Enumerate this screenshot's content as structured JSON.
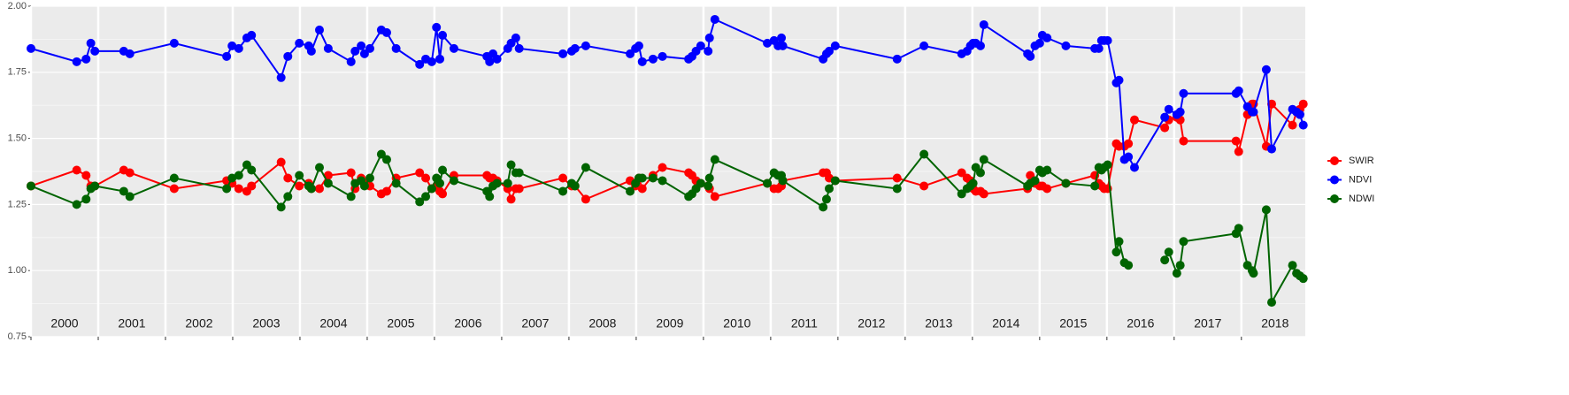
{
  "chart_data": {
    "type": "line",
    "x": [
      2000.0,
      2000.68,
      2000.82,
      2000.89,
      2000.95,
      2001.38,
      2001.47,
      2002.13,
      2002.91,
      2002.99,
      2003.09,
      2003.21,
      2003.28,
      2003.72,
      2003.82,
      2003.99,
      2004.13,
      2004.17,
      2004.29,
      2004.42,
      2004.76,
      2004.82,
      2004.91,
      2004.96,
      2005.04,
      2005.21,
      2005.29,
      2005.43,
      2005.78,
      2005.87,
      2005.96,
      2006.03,
      2006.08,
      2006.12,
      2006.29,
      2006.78,
      2006.82,
      2006.87,
      2006.93,
      2007.09,
      2007.14,
      2007.21,
      2007.26,
      2007.91,
      2008.04,
      2008.09,
      2008.25,
      2008.91,
      2008.99,
      2009.04,
      2009.09,
      2009.25,
      2009.39,
      2009.78,
      2009.83,
      2009.89,
      2009.96,
      2010.07,
      2010.09,
      2010.17,
      2010.95,
      2011.05,
      2011.11,
      2011.16,
      2011.18,
      2011.78,
      2011.83,
      2011.87,
      2011.96,
      2012.88,
      2013.28,
      2013.84,
      2013.92,
      2013.97,
      2014.01,
      2014.05,
      2014.12,
      2014.17,
      2014.82,
      2014.86,
      2014.93,
      2015.0,
      2015.04,
      2015.11,
      2015.39,
      2015.82,
      2015.88,
      2015.92,
      2015.96,
      2016.01,
      2016.14,
      2016.18,
      2016.26,
      2016.32,
      2016.41,
      2016.86,
      2016.92,
      2017.04,
      2017.09,
      2017.14,
      2017.92,
      2017.96,
      2018.09,
      2018.16,
      2018.18,
      2018.37,
      2018.45,
      2018.76,
      2018.82,
      2018.87,
      2018.92
    ],
    "series": [
      {
        "name": "SWIR",
        "color": "#ff0000",
        "values": [
          1.32,
          1.38,
          1.36,
          1.32,
          1.32,
          1.38,
          1.37,
          1.31,
          1.34,
          1.33,
          1.31,
          1.3,
          1.32,
          1.41,
          1.35,
          1.32,
          1.33,
          1.31,
          1.31,
          1.36,
          1.37,
          1.31,
          1.35,
          1.33,
          1.32,
          1.29,
          1.3,
          1.35,
          1.37,
          1.35,
          1.31,
          1.32,
          1.3,
          1.29,
          1.36,
          1.36,
          1.35,
          1.35,
          1.34,
          1.31,
          1.27,
          1.31,
          1.31,
          1.35,
          1.32,
          1.32,
          1.27,
          1.34,
          1.32,
          1.35,
          1.31,
          1.36,
          1.39,
          1.37,
          1.36,
          1.34,
          1.33,
          1.32,
          1.31,
          1.28,
          1.33,
          1.31,
          1.31,
          1.32,
          1.34,
          1.37,
          1.37,
          1.35,
          1.34,
          1.35,
          1.32,
          1.37,
          1.35,
          1.34,
          1.31,
          1.3,
          1.3,
          1.29,
          1.31,
          1.36,
          1.33,
          1.32,
          1.32,
          1.31,
          1.33,
          1.36,
          1.33,
          1.32,
          1.31,
          1.31,
          1.48,
          1.47,
          1.47,
          1.48,
          1.57,
          1.54,
          1.57,
          1.58,
          1.57,
          1.49,
          1.49,
          1.45,
          1.59,
          1.63,
          1.63,
          1.47,
          1.63,
          1.55,
          1.6,
          1.61,
          1.63
        ]
      },
      {
        "name": "NDVI",
        "color": "#0000ff",
        "values": [
          1.84,
          1.79,
          1.8,
          1.86,
          1.83,
          1.83,
          1.82,
          1.86,
          1.81,
          1.85,
          1.84,
          1.88,
          1.89,
          1.73,
          1.81,
          1.86,
          1.85,
          1.83,
          1.91,
          1.84,
          1.79,
          1.83,
          1.85,
          1.82,
          1.84,
          1.91,
          1.9,
          1.84,
          1.78,
          1.8,
          1.79,
          1.92,
          1.8,
          1.89,
          1.84,
          1.81,
          1.79,
          1.82,
          1.8,
          1.84,
          1.86,
          1.88,
          1.84,
          1.82,
          1.83,
          1.84,
          1.85,
          1.82,
          1.84,
          1.85,
          1.79,
          1.8,
          1.81,
          1.8,
          1.81,
          1.83,
          1.85,
          1.83,
          1.88,
          1.95,
          1.86,
          1.87,
          1.85,
          1.88,
          1.85,
          1.8,
          1.82,
          1.83,
          1.85,
          1.8,
          1.85,
          1.82,
          1.83,
          1.85,
          1.86,
          1.86,
          1.85,
          1.93,
          1.82,
          1.81,
          1.85,
          1.86,
          1.89,
          1.88,
          1.85,
          1.84,
          1.84,
          1.87,
          1.87,
          1.87,
          1.71,
          1.72,
          1.42,
          1.43,
          1.39,
          1.58,
          1.61,
          1.59,
          1.6,
          1.67,
          1.67,
          1.68,
          1.62,
          1.6,
          1.6,
          1.76,
          1.46,
          1.61,
          1.6,
          1.59,
          1.55
        ]
      },
      {
        "name": "NDWI",
        "color": "#006400",
        "values": [
          1.32,
          1.25,
          1.27,
          1.31,
          1.32,
          1.3,
          1.28,
          1.35,
          1.31,
          1.35,
          1.36,
          1.4,
          1.38,
          1.24,
          1.28,
          1.36,
          1.32,
          1.31,
          1.39,
          1.33,
          1.28,
          1.33,
          1.34,
          1.32,
          1.35,
          1.44,
          1.42,
          1.33,
          1.26,
          1.28,
          1.31,
          1.35,
          1.33,
          1.38,
          1.34,
          1.3,
          1.28,
          1.32,
          1.33,
          1.33,
          1.4,
          1.37,
          1.37,
          1.3,
          1.33,
          1.32,
          1.39,
          1.3,
          1.33,
          1.35,
          1.35,
          1.35,
          1.34,
          1.28,
          1.29,
          1.31,
          1.33,
          1.32,
          1.35,
          1.42,
          1.33,
          1.37,
          1.36,
          1.36,
          1.34,
          1.24,
          1.27,
          1.31,
          1.34,
          1.31,
          1.44,
          1.29,
          1.31,
          1.32,
          1.33,
          1.39,
          1.37,
          1.42,
          1.32,
          1.33,
          1.34,
          1.38,
          1.37,
          1.38,
          1.33,
          1.32,
          1.39,
          1.38,
          1.39,
          1.4,
          1.07,
          1.11,
          1.03,
          1.02,
          null,
          1.04,
          1.07,
          0.99,
          1.02,
          1.11,
          1.14,
          1.16,
          1.02,
          1.0,
          0.99,
          1.23,
          0.88,
          1.02,
          0.99,
          0.98,
          0.97
        ]
      }
    ],
    "xlim": [
      2000,
      2018.95
    ],
    "xticks": [
      2000,
      2001,
      2002,
      2003,
      2004,
      2005,
      2006,
      2007,
      2008,
      2009,
      2010,
      2011,
      2012,
      2013,
      2014,
      2015,
      2016,
      2017,
      2018
    ],
    "year_labels": [
      "2000",
      "2001",
      "2002",
      "2003",
      "2004",
      "2005",
      "2006",
      "2007",
      "2008",
      "2009",
      "2010",
      "2011",
      "2012",
      "2013",
      "2014",
      "2015",
      "2016",
      "2017",
      "2018"
    ],
    "ylim": [
      0.75,
      2.0
    ],
    "yticks": [
      {
        "value": 0.75,
        "label": "0.75"
      },
      {
        "value": 1,
        "label": "1.00"
      },
      {
        "value": 1.25,
        "label": "1.25"
      },
      {
        "value": 1.5,
        "label": "1.50"
      },
      {
        "value": 1.75,
        "label": "1.75"
      },
      {
        "value": 2,
        "label": "2.00"
      }
    ],
    "grid": true,
    "legend": "right"
  }
}
